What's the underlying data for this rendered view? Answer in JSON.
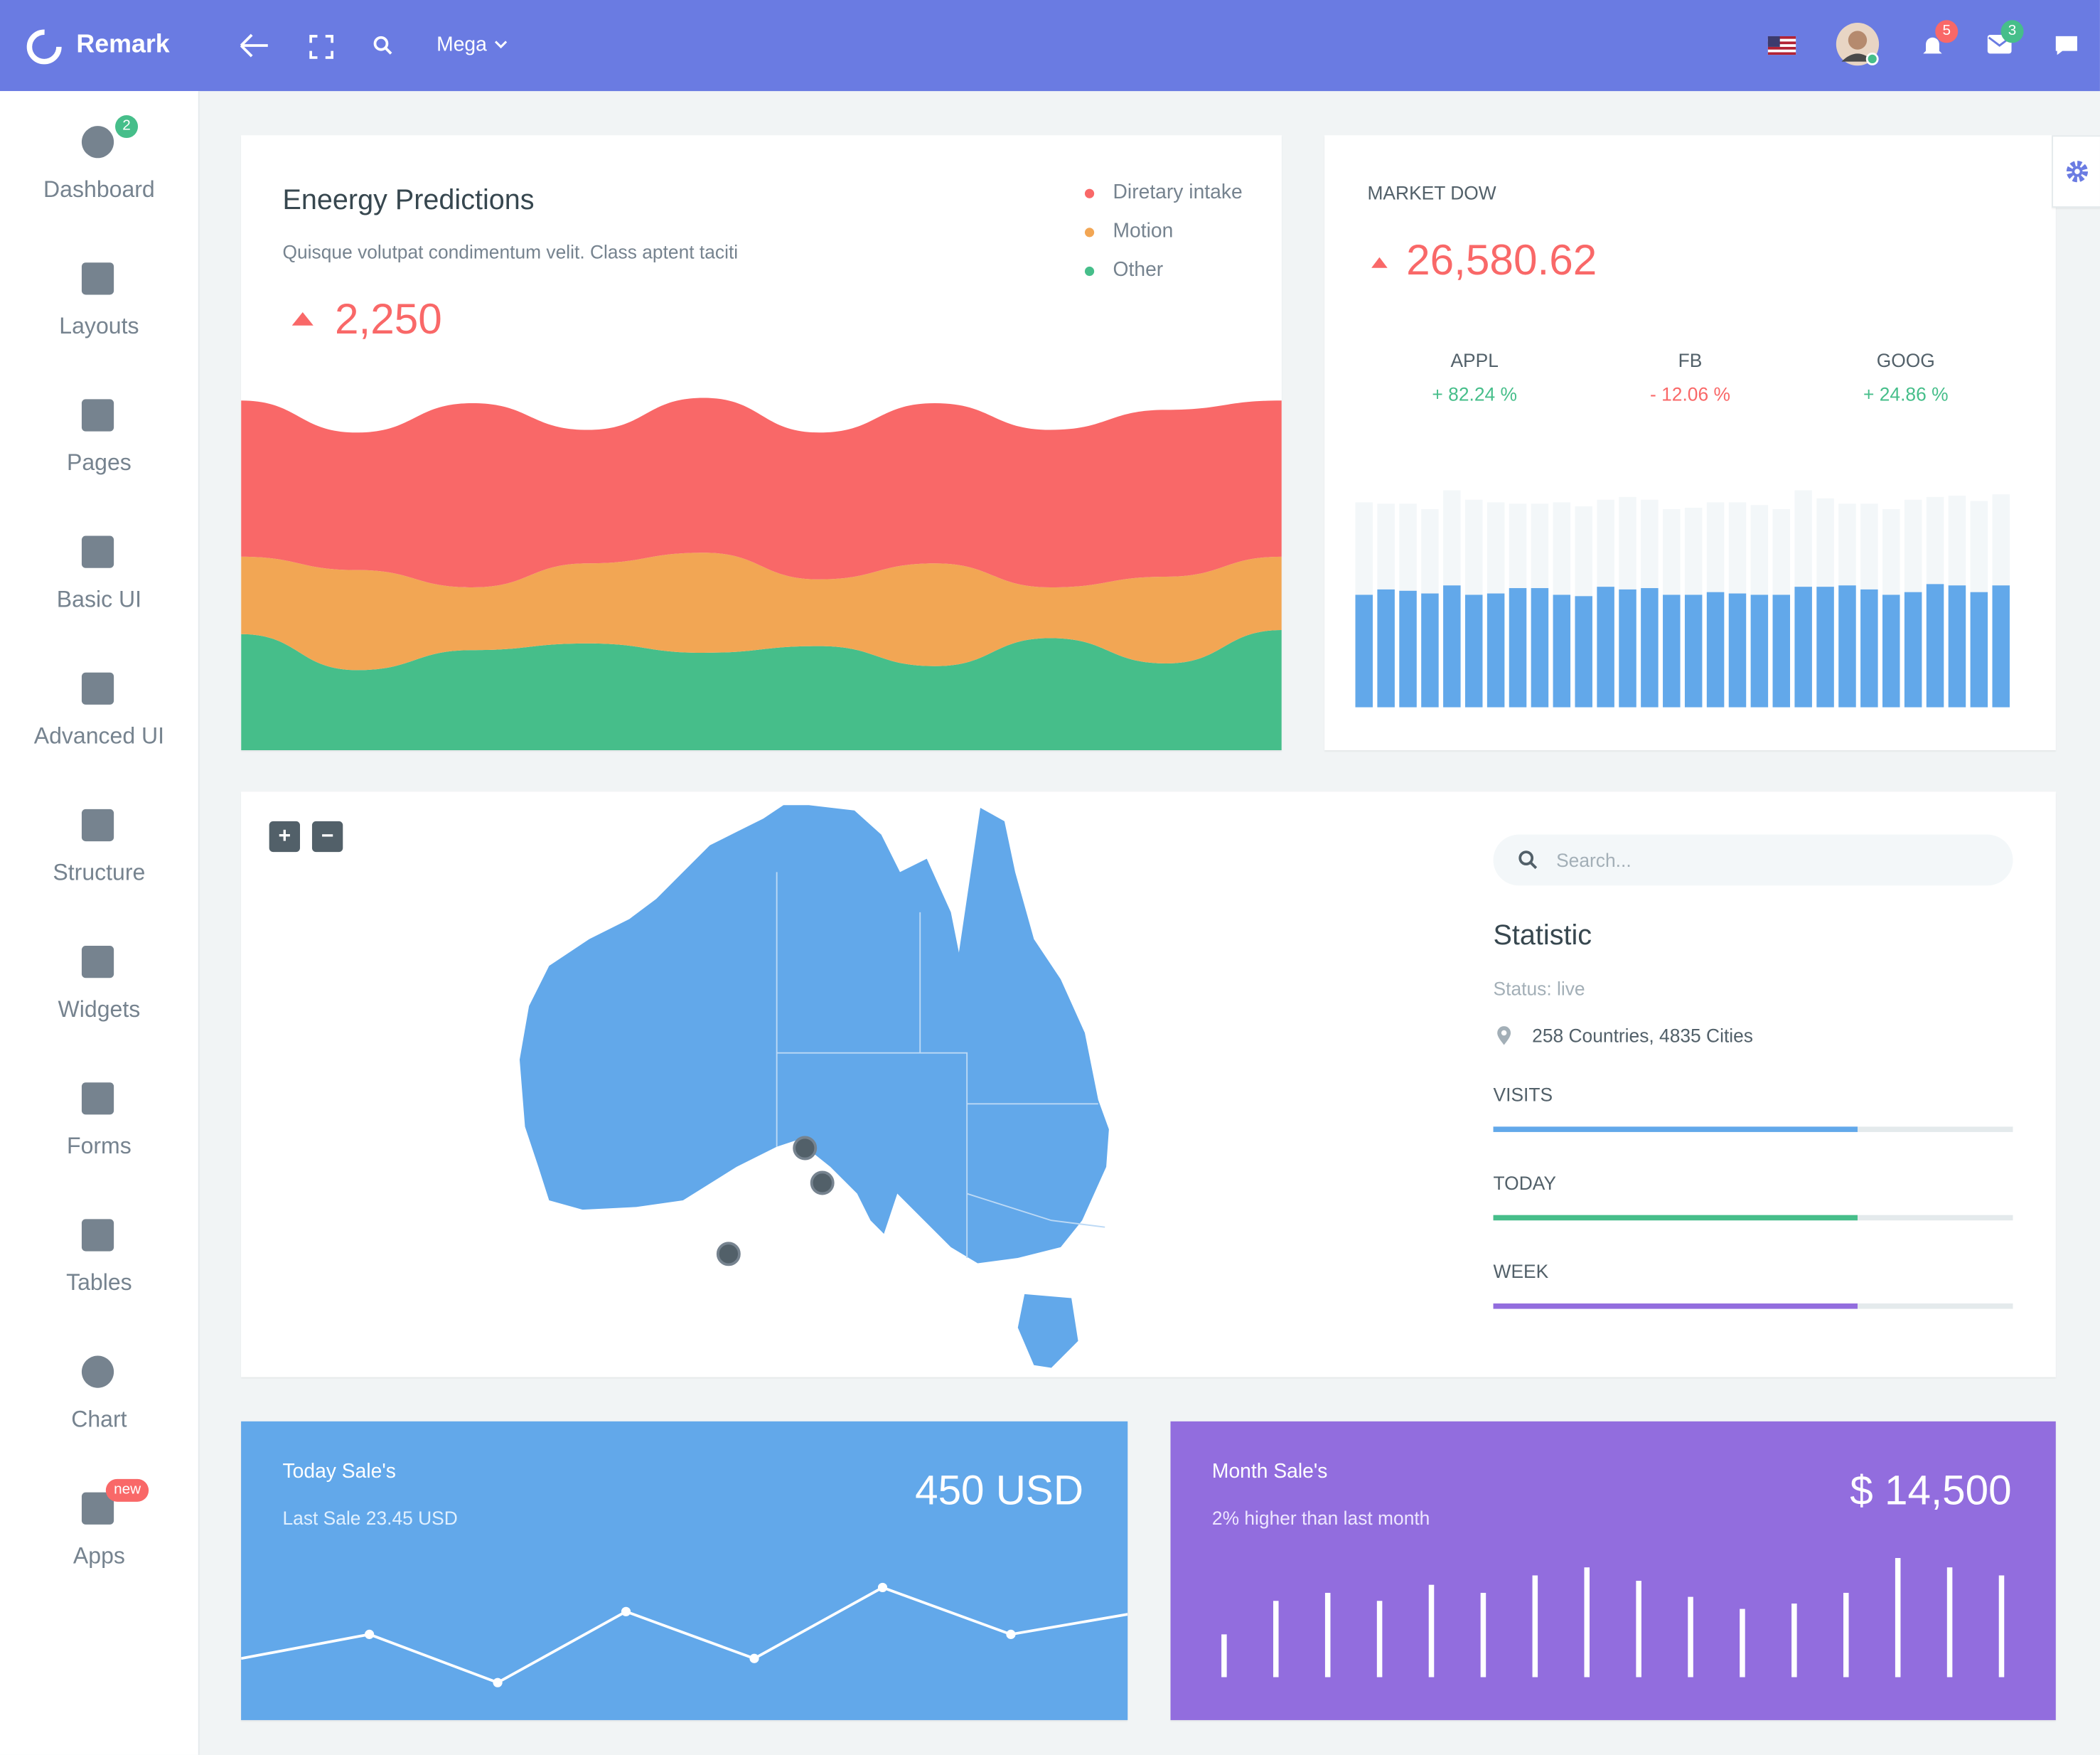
{
  "header": {
    "brand": "Remark",
    "menu": "Mega",
    "notifications": "5",
    "messages": "3"
  },
  "sidebar": [
    {
      "label": "Dashboard",
      "badge": "2"
    },
    {
      "label": "Layouts"
    },
    {
      "label": "Pages"
    },
    {
      "label": "Basic UI"
    },
    {
      "label": "Advanced UI"
    },
    {
      "label": "Structure"
    },
    {
      "label": "Widgets"
    },
    {
      "label": "Forms"
    },
    {
      "label": "Tables"
    },
    {
      "label": "Chart"
    },
    {
      "label": "Apps",
      "badge": "new"
    }
  ],
  "energy": {
    "title": "Eneergy Predictions",
    "subtitle": "Quisque volutpat condimentum velit. Class aptent taciti",
    "value": "2,250",
    "chart_data": {
      "type": "area",
      "ylim": [
        0,
        270
      ],
      "series": [
        {
          "name": "Other",
          "color": "#46be8a",
          "values": [
            87,
            60,
            75,
            80,
            73,
            78,
            63,
            84,
            65,
            90
          ]
        },
        {
          "name": "Motion",
          "color": "#f2a654",
          "values": [
            58,
            75,
            47,
            60,
            75,
            50,
            77,
            38,
            65,
            55
          ]
        },
        {
          "name": "Diretary intake",
          "color": "#f96868",
          "values": [
            117,
            103,
            138,
            100,
            116,
            110,
            120,
            118,
            125,
            117
          ]
        }
      ]
    }
  },
  "market": {
    "title": "MARKET DOW",
    "value": "26,580.62",
    "stocks": [
      {
        "name": "APPL",
        "change": "+ 82.24 %",
        "color": "#46be8a"
      },
      {
        "name": "FB",
        "change": "- 12.06 %",
        "color": "#f96868"
      },
      {
        "name": "GOOG",
        "change": "+ 24.86 %",
        "color": "#46be8a"
      }
    ],
    "chart_data": {
      "type": "bar",
      "ylim": [
        0,
        165
      ],
      "color": "#62a8ea",
      "track_color": "#f3f7f9",
      "values": [
        84,
        88,
        87,
        85,
        91,
        84,
        85,
        89,
        89,
        84,
        83,
        90,
        88,
        89,
        84,
        84,
        86,
        85,
        84,
        84,
        90,
        90,
        91,
        88,
        84,
        86,
        92,
        91,
        86,
        91
      ],
      "totals": [
        153,
        152,
        152,
        148,
        162,
        155,
        153,
        152,
        152,
        153,
        150,
        155,
        157,
        155,
        148,
        149,
        153,
        153,
        151,
        148,
        162,
        156,
        152,
        152,
        148,
        155,
        157,
        158,
        154,
        159
      ]
    }
  },
  "map": {
    "zoom_in": "+",
    "zoom_out": "−",
    "search": "Search...",
    "title": "Statistic",
    "status": "Status: live",
    "location": "258 Countries, 4835 Cities",
    "progress": [
      {
        "label": "VISITS",
        "value": 70,
        "color": "#62a8ea"
      },
      {
        "label": "TODAY",
        "value": 70,
        "color": "#46be8a"
      },
      {
        "label": "WEEK",
        "value": 70,
        "color": "#926dde"
      }
    ]
  },
  "today": {
    "title": "Today Sale's",
    "value": "450 USD",
    "note": "Last Sale 23.45 USD",
    "chart_data": {
      "type": "line",
      "ylim": [
        0,
        223
      ],
      "values": [
        46,
        64,
        28,
        81,
        46,
        99,
        64,
        79
      ]
    }
  },
  "month": {
    "title": "Month Sale's",
    "value": "$ 14,500",
    "note": "2% higher than last month",
    "chart_data": {
      "type": "bar",
      "ylim": [
        0,
        140
      ],
      "values": [
        32,
        57,
        63,
        57,
        69,
        63,
        76,
        82,
        72,
        60,
        51,
        55,
        63,
        89,
        82,
        76
      ]
    }
  }
}
